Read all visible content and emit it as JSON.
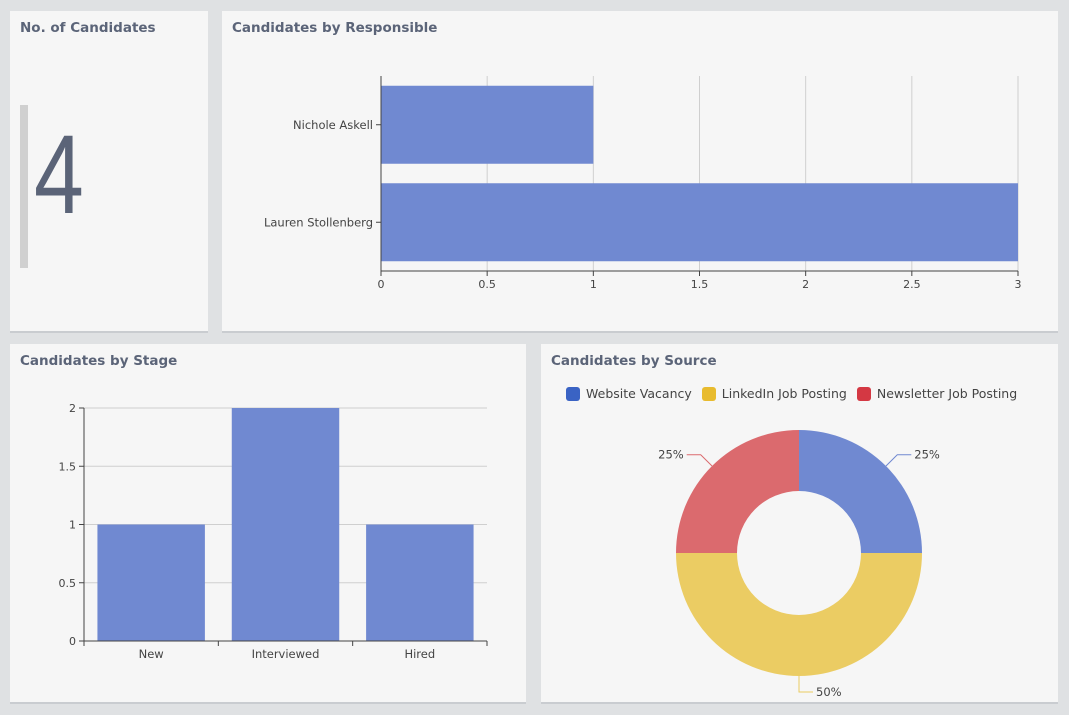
{
  "kpi": {
    "title": "No. of Candidates",
    "value": "4"
  },
  "colors": {
    "bar": "#7089d1",
    "website": "#7089d1",
    "linkedin": "#ebcc63",
    "newsletter": "#db6a6e",
    "legend_website": "#3a63c4",
    "legend_linkedin": "#e8bb2e",
    "legend_newsletter": "#d43843"
  },
  "chart_data": [
    {
      "id": "responsible",
      "type": "bar",
      "orientation": "horizontal",
      "title": "Candidates by Responsible",
      "categories": [
        "Nichole Askell",
        "Lauren Stollenberg"
      ],
      "values": [
        1,
        3
      ],
      "xlim": [
        0,
        3
      ],
      "xticks": [
        "0",
        "0.5",
        "1",
        "1.5",
        "2",
        "2.5",
        "3"
      ],
      "xtick_values": [
        0,
        0.5,
        1,
        1.5,
        2,
        2.5,
        3
      ],
      "grid": true
    },
    {
      "id": "stage",
      "type": "bar",
      "title": "Candidates by Stage",
      "categories": [
        "New",
        "Interviewed",
        "Hired"
      ],
      "values": [
        1,
        2,
        1
      ],
      "ylim": [
        0,
        2
      ],
      "yticks": [
        "0",
        "0.5",
        "1",
        "1.5",
        "2"
      ],
      "ytick_values": [
        0,
        0.5,
        1,
        1.5,
        2
      ],
      "grid": true
    },
    {
      "id": "source",
      "type": "pie",
      "donut": true,
      "title": "Candidates by Source",
      "legend_position": "top-left",
      "slices": [
        {
          "label": "Website Vacancy",
          "value": 25,
          "pct_label": "25%"
        },
        {
          "label": "LinkedIn Job Posting",
          "value": 50,
          "pct_label": "50%"
        },
        {
          "label": "Newsletter Job Posting",
          "value": 25,
          "pct_label": "25%"
        }
      ]
    }
  ]
}
